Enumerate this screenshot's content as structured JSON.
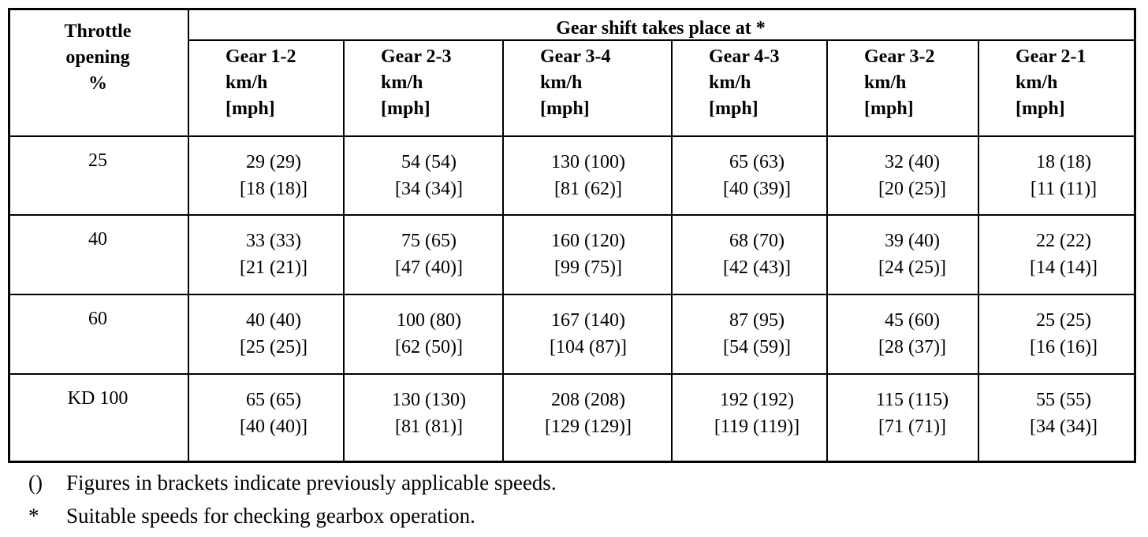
{
  "table": {
    "corner": [
      "Throttle",
      "opening",
      "%"
    ],
    "group_header": "Gear shift takes place at *",
    "columns": [
      [
        "Gear 1-2",
        "km/h",
        "[mph]"
      ],
      [
        "Gear 2-3",
        "km/h",
        "[mph]"
      ],
      [
        "Gear 3-4",
        "km/h",
        "[mph]"
      ],
      [
        "Gear 4-3",
        "km/h",
        "[mph]"
      ],
      [
        "Gear 3-2",
        "km/h",
        "[mph]"
      ],
      [
        "Gear 2-1",
        "km/h",
        "[mph]"
      ]
    ],
    "rows": [
      {
        "throttle": "25",
        "cells": [
          [
            "29 (29)",
            "[18 (18)]"
          ],
          [
            "54 (54)",
            "[34 (34)]"
          ],
          [
            "130 (100)",
            "[81 (62)]"
          ],
          [
            "65 (63)",
            "[40 (39)]"
          ],
          [
            "32 (40)",
            "[20 (25)]"
          ],
          [
            "18 (18)",
            "[11 (11)]"
          ]
        ]
      },
      {
        "throttle": "40",
        "cells": [
          [
            "33 (33)",
            "[21 (21)]"
          ],
          [
            "75 (65)",
            "[47 (40)]"
          ],
          [
            "160 (120)",
            "[99 (75)]"
          ],
          [
            "68 (70)",
            "[42 (43)]"
          ],
          [
            "39 (40)",
            "[24 (25)]"
          ],
          [
            "22 (22)",
            "[14 (14)]"
          ]
        ]
      },
      {
        "throttle": "60",
        "cells": [
          [
            "40 (40)",
            "[25 (25)]"
          ],
          [
            "100 (80)",
            "[62 (50)]"
          ],
          [
            "167 (140)",
            "[104 (87)]"
          ],
          [
            "87 (95)",
            "[54 (59)]"
          ],
          [
            "45 (60)",
            "[28 (37)]"
          ],
          [
            "25 (25)",
            "[16 (16)]"
          ]
        ]
      },
      {
        "throttle": "KD 100",
        "cells": [
          [
            "65 (65)",
            "[40 (40)]"
          ],
          [
            "130 (130)",
            "[81 (81)]"
          ],
          [
            "208 (208)",
            "[129 (129)]"
          ],
          [
            "192 (192)",
            "[119 (119)]"
          ],
          [
            "115 (115)",
            "[71 (71)]"
          ],
          [
            "55 (55)",
            "[34 (34)]"
          ]
        ]
      }
    ]
  },
  "notes": [
    {
      "symbol": "()",
      "text": "Figures in brackets indicate previously applicable speeds."
    },
    {
      "symbol": "*",
      "text": "Suitable speeds for checking gearbox operation."
    }
  ]
}
